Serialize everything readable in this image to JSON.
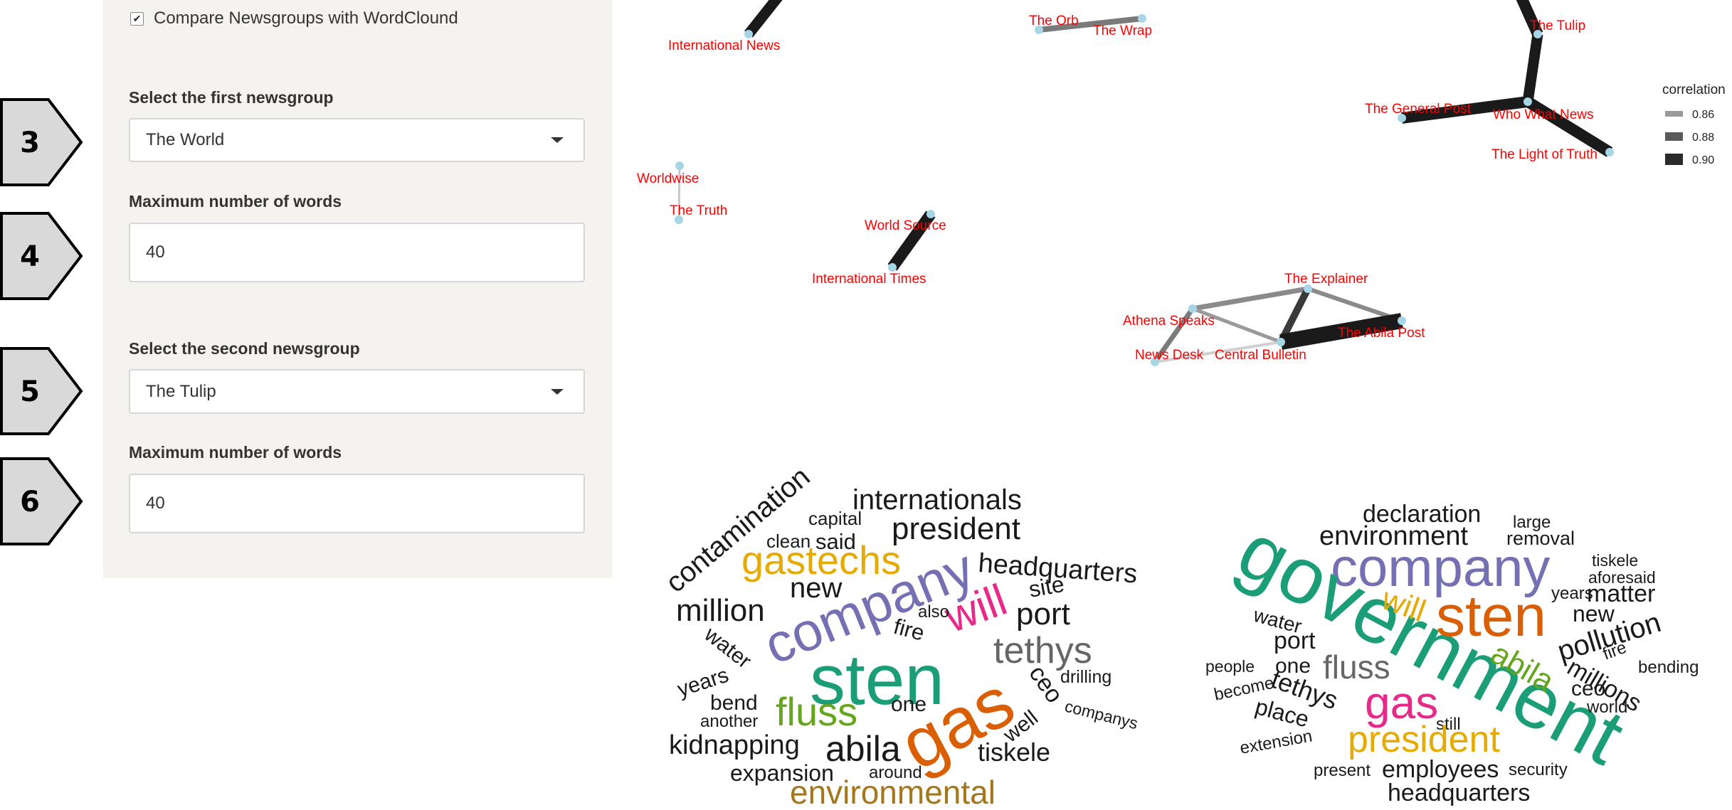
{
  "sidebar": {
    "compare_checkbox": {
      "label": "Compare Newsgroups with WordClound",
      "checked": true,
      "check_glyph": "✔"
    },
    "first_group_label": "Select the first newsgroup",
    "first_group_value": "The World",
    "first_max_label": "Maximum number of words",
    "first_max_value": "40",
    "second_group_label": "Select the second newsgroup",
    "second_group_value": "The Tulip",
    "second_max_label": "Maximum number of words",
    "second_max_value": "40"
  },
  "annotations": [
    "3",
    "4",
    "5",
    "6"
  ],
  "network": {
    "labels": {
      "international_news": "International News",
      "the_orb": "The Orb",
      "the_wrap": "The Wrap",
      "the_tulip": "The Tulip",
      "the_general_post": "The General Post",
      "who_what_news": "Who What News",
      "the_light_of_truth": "The Light of Truth",
      "worldwise": "Worldwise",
      "the_truth": "The Truth",
      "world_source": "World Source",
      "international_times": "International Times",
      "the_explainer": "The Explainer",
      "athena_speaks": "Athena Speaks",
      "the_abila_post": "The Abila Post",
      "news_desk": "News Desk",
      "central_bulletin": "Central Bulletin"
    },
    "legend": {
      "title": "correlation",
      "values": [
        "0.86",
        "0.88",
        "0.90"
      ]
    },
    "colors": {
      "label": "#ff0000",
      "node": "#a6d5e6",
      "edge_dark": "#1a1a1a"
    }
  },
  "cloud_left": {
    "words": {
      "contamination": "contamination",
      "internationals": "internationals",
      "capital": "capital",
      "clean": "clean",
      "said": "said",
      "president": "president",
      "gastechs": "gastechs",
      "headquarters": "headquarters",
      "new": "new",
      "company": "company",
      "site": "site",
      "million": "million",
      "will": "will",
      "also": "also",
      "port": "port",
      "fire": "fire",
      "tethys": "tethys",
      "water": "water",
      "sten": "sten",
      "years": "years",
      "drilling": "drilling",
      "ceo": "ceo",
      "bend": "bend",
      "fluss": "fluss",
      "one": "one",
      "another": "another",
      "well": "well",
      "companys": "companys",
      "gas": "gas",
      "kidnapping": "kidnapping",
      "abila": "abila",
      "tiskele": "tiskele",
      "expansion": "expansion",
      "around": "around",
      "environmental": "environmental"
    }
  },
  "cloud_right": {
    "words": {
      "declaration": "declaration",
      "large": "large",
      "environment": "environment",
      "removal": "removal",
      "company": "company",
      "tiskele": "tiskele",
      "aforesaid": "aforesaid",
      "government": "government",
      "will": "will",
      "years": "years",
      "matter": "matter",
      "sten": "sten",
      "new": "new",
      "water": "water",
      "pollution": "pollution",
      "port": "port",
      "abila": "abila",
      "fire": "fire",
      "people": "people",
      "one": "one",
      "fluss": "fluss",
      "millions": "millions",
      "bending": "bending",
      "become": "become",
      "tethys": "tethys",
      "ceo": "ceo",
      "gas": "gas",
      "world": "world",
      "place": "place",
      "still": "still",
      "extension": "extension",
      "president": "president",
      "present": "present",
      "employees": "employees",
      "security": "security",
      "headquarters": "headquarters"
    }
  }
}
